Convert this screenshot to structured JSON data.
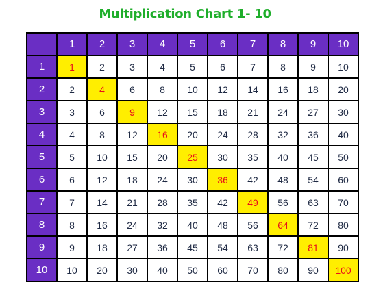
{
  "title": "Multiplication Chart 1- 10",
  "colors": {
    "title": "#1fae2b",
    "header_bg": "#6a2ec4",
    "corner_bg": "#6a2ec4",
    "cell_bg": "#ffffff",
    "diagonal_bg": "#ffee00",
    "diagonal_text": "#e8101a",
    "text": "#1f2a44",
    "header_text": "#ffffff",
    "grid_line": "#000000"
  },
  "column_headers": [
    "1",
    "2",
    "3",
    "4",
    "5",
    "6",
    "7",
    "8",
    "9",
    "10"
  ],
  "row_headers": [
    "1",
    "2",
    "3",
    "4",
    "5",
    "6",
    "7",
    "8",
    "9",
    "10"
  ],
  "rows": [
    [
      "1",
      "2",
      "3",
      "4",
      "5",
      "6",
      "7",
      "8",
      "9",
      "10"
    ],
    [
      "2",
      "4",
      "6",
      "8",
      "10",
      "12",
      "14",
      "16",
      "18",
      "20"
    ],
    [
      "3",
      "6",
      "9",
      "12",
      "15",
      "18",
      "21",
      "24",
      "27",
      "30"
    ],
    [
      "4",
      "8",
      "12",
      "16",
      "20",
      "24",
      "28",
      "32",
      "36",
      "40"
    ],
    [
      "5",
      "10",
      "15",
      "20",
      "25",
      "30",
      "35",
      "40",
      "45",
      "50"
    ],
    [
      "6",
      "12",
      "18",
      "24",
      "30",
      "36",
      "42",
      "48",
      "54",
      "60"
    ],
    [
      "7",
      "14",
      "21",
      "28",
      "35",
      "42",
      "49",
      "56",
      "63",
      "70"
    ],
    [
      "8",
      "16",
      "24",
      "32",
      "40",
      "48",
      "56",
      "64",
      "72",
      "80"
    ],
    [
      "9",
      "18",
      "27",
      "36",
      "45",
      "54",
      "63",
      "72",
      "81",
      "90"
    ],
    [
      "10",
      "20",
      "30",
      "40",
      "50",
      "60",
      "70",
      "80",
      "90",
      "100"
    ]
  ]
}
